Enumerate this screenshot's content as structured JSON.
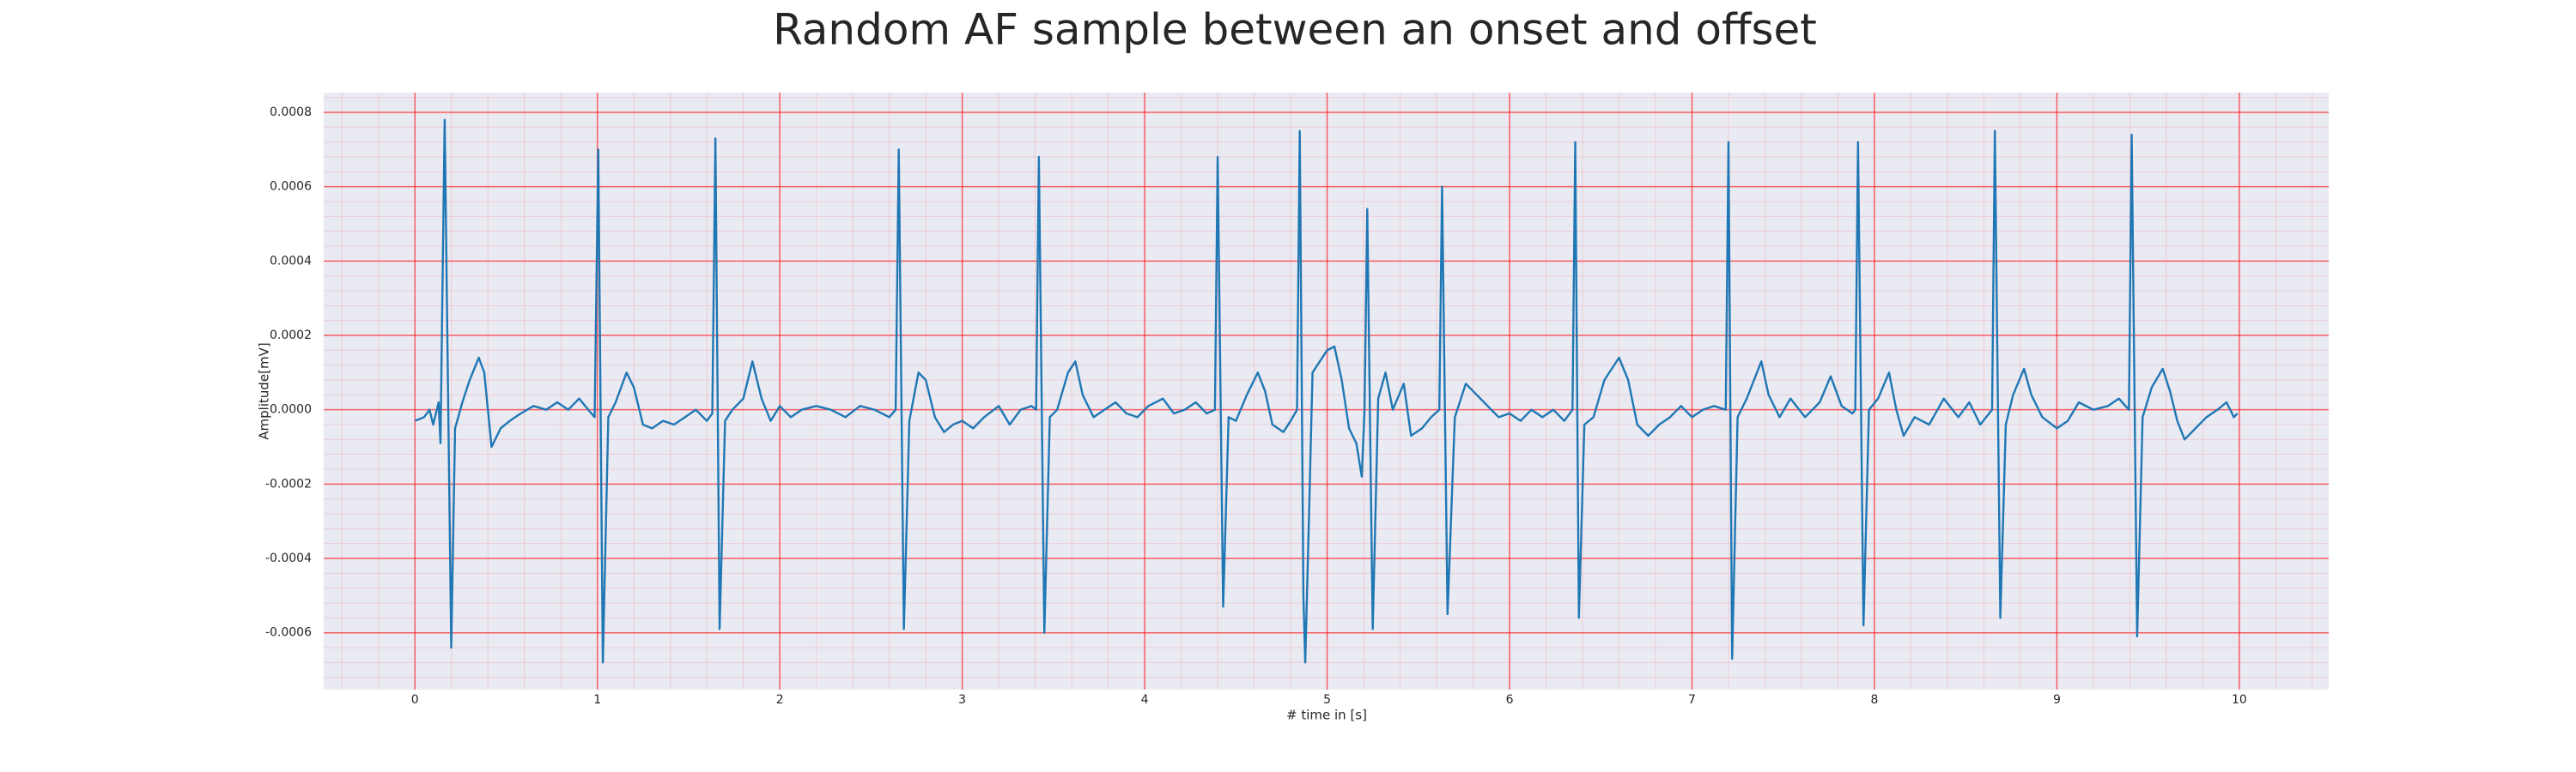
{
  "chart_data": {
    "type": "line",
    "title": "Random AF sample between an onset and offset",
    "x_label": "# time in [s]",
    "y_label": "Amplitude[mV]",
    "x": [
      0,
      0.05,
      0.08,
      0.1,
      0.13,
      0.14,
      0.163,
      0.199,
      0.22,
      0.26,
      0.3,
      0.35,
      0.38,
      0.42,
      0.47,
      0.52,
      0.58,
      0.65,
      0.72,
      0.78,
      0.84,
      0.9,
      0.95,
      0.985,
      1.005,
      1.03,
      1.06,
      1.1,
      1.16,
      1.2,
      1.25,
      1.3,
      1.36,
      1.42,
      1.48,
      1.54,
      1.6,
      1.63,
      1.647,
      1.67,
      1.7,
      1.74,
      1.8,
      1.85,
      1.9,
      1.95,
      2.0,
      2.06,
      2.12,
      2.2,
      2.28,
      2.36,
      2.44,
      2.52,
      2.6,
      2.635,
      2.652,
      2.68,
      2.71,
      2.76,
      2.8,
      2.85,
      2.9,
      2.95,
      3.0,
      3.06,
      3.12,
      3.2,
      3.26,
      3.32,
      3.38,
      3.405,
      3.42,
      3.45,
      3.48,
      3.52,
      3.58,
      3.62,
      3.66,
      3.72,
      3.78,
      3.84,
      3.9,
      3.96,
      4.02,
      4.1,
      4.16,
      4.22,
      4.28,
      4.34,
      4.385,
      4.4,
      4.43,
      4.46,
      4.5,
      4.56,
      4.62,
      4.66,
      4.7,
      4.76,
      4.8,
      4.835,
      4.85,
      4.87,
      4.88,
      4.9,
      4.92,
      4.96,
      5.0,
      5.04,
      5.08,
      5.12,
      5.16,
      5.19,
      5.205,
      5.22,
      5.25,
      5.28,
      5.32,
      5.36,
      5.42,
      5.46,
      5.52,
      5.57,
      5.615,
      5.63,
      5.66,
      5.7,
      5.76,
      5.82,
      5.88,
      5.94,
      6.0,
      6.06,
      6.12,
      6.18,
      6.24,
      6.3,
      6.345,
      6.36,
      6.38,
      6.41,
      6.46,
      6.52,
      6.6,
      6.65,
      6.7,
      6.76,
      6.82,
      6.88,
      6.94,
      7.0,
      7.06,
      7.12,
      7.185,
      7.2,
      7.22,
      7.25,
      7.3,
      7.38,
      7.42,
      7.48,
      7.54,
      7.62,
      7.7,
      7.76,
      7.82,
      7.88,
      7.895,
      7.91,
      7.94,
      7.97,
      8.02,
      8.08,
      8.12,
      8.16,
      8.22,
      8.3,
      8.38,
      8.46,
      8.52,
      8.58,
      8.645,
      8.66,
      8.69,
      8.72,
      8.76,
      8.82,
      8.86,
      8.92,
      9.0,
      9.06,
      9.12,
      9.2,
      9.28,
      9.34,
      9.395,
      9.41,
      9.44,
      9.47,
      9.52,
      9.58,
      9.62,
      9.66,
      9.7,
      9.76,
      9.82,
      9.88,
      9.93,
      9.97,
      9.99
    ],
    "series": [
      {
        "color": "#1f77b4",
        "values": [
          -3e-05,
          -2e-05,
          0.0,
          -4e-05,
          2e-05,
          -9e-05,
          0.00078,
          -0.00064,
          -5e-05,
          2e-05,
          8e-05,
          0.00014,
          0.0001,
          -0.0001,
          -5e-05,
          -3e-05,
          -1e-05,
          1e-05,
          0.0,
          2e-05,
          0.0,
          3e-05,
          0.0,
          -2e-05,
          0.0007,
          -0.00068,
          -2e-05,
          2e-05,
          0.0001,
          6e-05,
          -4e-05,
          -5e-05,
          -3e-05,
          -4e-05,
          -2e-05,
          0.0,
          -3e-05,
          -1e-05,
          0.00073,
          -0.00059,
          -3e-05,
          0.0,
          3e-05,
          0.00013,
          3e-05,
          -3e-05,
          1e-05,
          -2e-05,
          0.0,
          1e-05,
          0.0,
          -2e-05,
          1e-05,
          0.0,
          -2e-05,
          0.0,
          0.0007,
          -0.00059,
          -3e-05,
          0.0001,
          8e-05,
          -2e-05,
          -6e-05,
          -4e-05,
          -3e-05,
          -5e-05,
          -2e-05,
          1e-05,
          -4e-05,
          0.0,
          1e-05,
          0.0,
          0.00068,
          -0.0006,
          -2e-05,
          0.0,
          0.0001,
          0.00013,
          4e-05,
          -2e-05,
          0.0,
          2e-05,
          -1e-05,
          -2e-05,
          1e-05,
          3e-05,
          -1e-05,
          0.0,
          2e-05,
          -1e-05,
          0.0,
          0.00068,
          -0.00053,
          -2e-05,
          -3e-05,
          4e-05,
          0.0001,
          5e-05,
          -4e-05,
          -6e-05,
          -3e-05,
          0.0,
          0.00075,
          -0.0005,
          -0.00068,
          -0.0003,
          0.0001,
          0.00013,
          0.00016,
          0.00017,
          8e-05,
          -5e-05,
          -9e-05,
          -0.00018,
          0.0,
          0.00054,
          -0.00059,
          3e-05,
          0.0001,
          0.0,
          7e-05,
          -7e-05,
          -5e-05,
          -2e-05,
          0.0,
          0.0006,
          -0.00055,
          -2e-05,
          7e-05,
          4e-05,
          1e-05,
          -2e-05,
          -1e-05,
          -3e-05,
          0.0,
          -2e-05,
          0.0,
          -3e-05,
          0.0,
          0.00072,
          -0.00056,
          -4e-05,
          -2e-05,
          8e-05,
          0.00014,
          8e-05,
          -4e-05,
          -7e-05,
          -4e-05,
          -2e-05,
          1e-05,
          -2e-05,
          0.0,
          1e-05,
          0.0,
          0.00072,
          -0.00067,
          -2e-05,
          3e-05,
          0.00013,
          4e-05,
          -2e-05,
          3e-05,
          -2e-05,
          2e-05,
          9e-05,
          1e-05,
          -1e-05,
          0.0,
          0.00072,
          -0.00058,
          0.0,
          3e-05,
          0.0001,
          0.0,
          -7e-05,
          -2e-05,
          -4e-05,
          3e-05,
          -2e-05,
          2e-05,
          -4e-05,
          0.0,
          0.00075,
          -0.00056,
          -4e-05,
          4e-05,
          0.00011,
          4e-05,
          -2e-05,
          -5e-05,
          -3e-05,
          2e-05,
          0.0,
          1e-05,
          3e-05,
          0.0,
          0.00074,
          -0.00061,
          -2e-05,
          6e-05,
          0.00011,
          5e-05,
          -3e-05,
          -8e-05,
          -5e-05,
          -2e-05,
          0.0,
          2e-05,
          -2e-05,
          -1e-05
        ]
      }
    ],
    "xlim": [
      -0.5,
      10.49
    ],
    "ylim": [
      -0.000753,
      0.000853
    ],
    "xticks": [
      0,
      1,
      2,
      3,
      4,
      5,
      6,
      7,
      8,
      9,
      10
    ],
    "yticks": [
      -0.0006,
      -0.0004,
      -0.0002,
      {
        "value": 0,
        "label": "0.0000"
      },
      0.0002,
      0.0004,
      0.0006,
      0.0008
    ],
    "grid": true,
    "minor_grid": true,
    "grid_color": "#ff0000",
    "background": "#eaeaf2"
  }
}
